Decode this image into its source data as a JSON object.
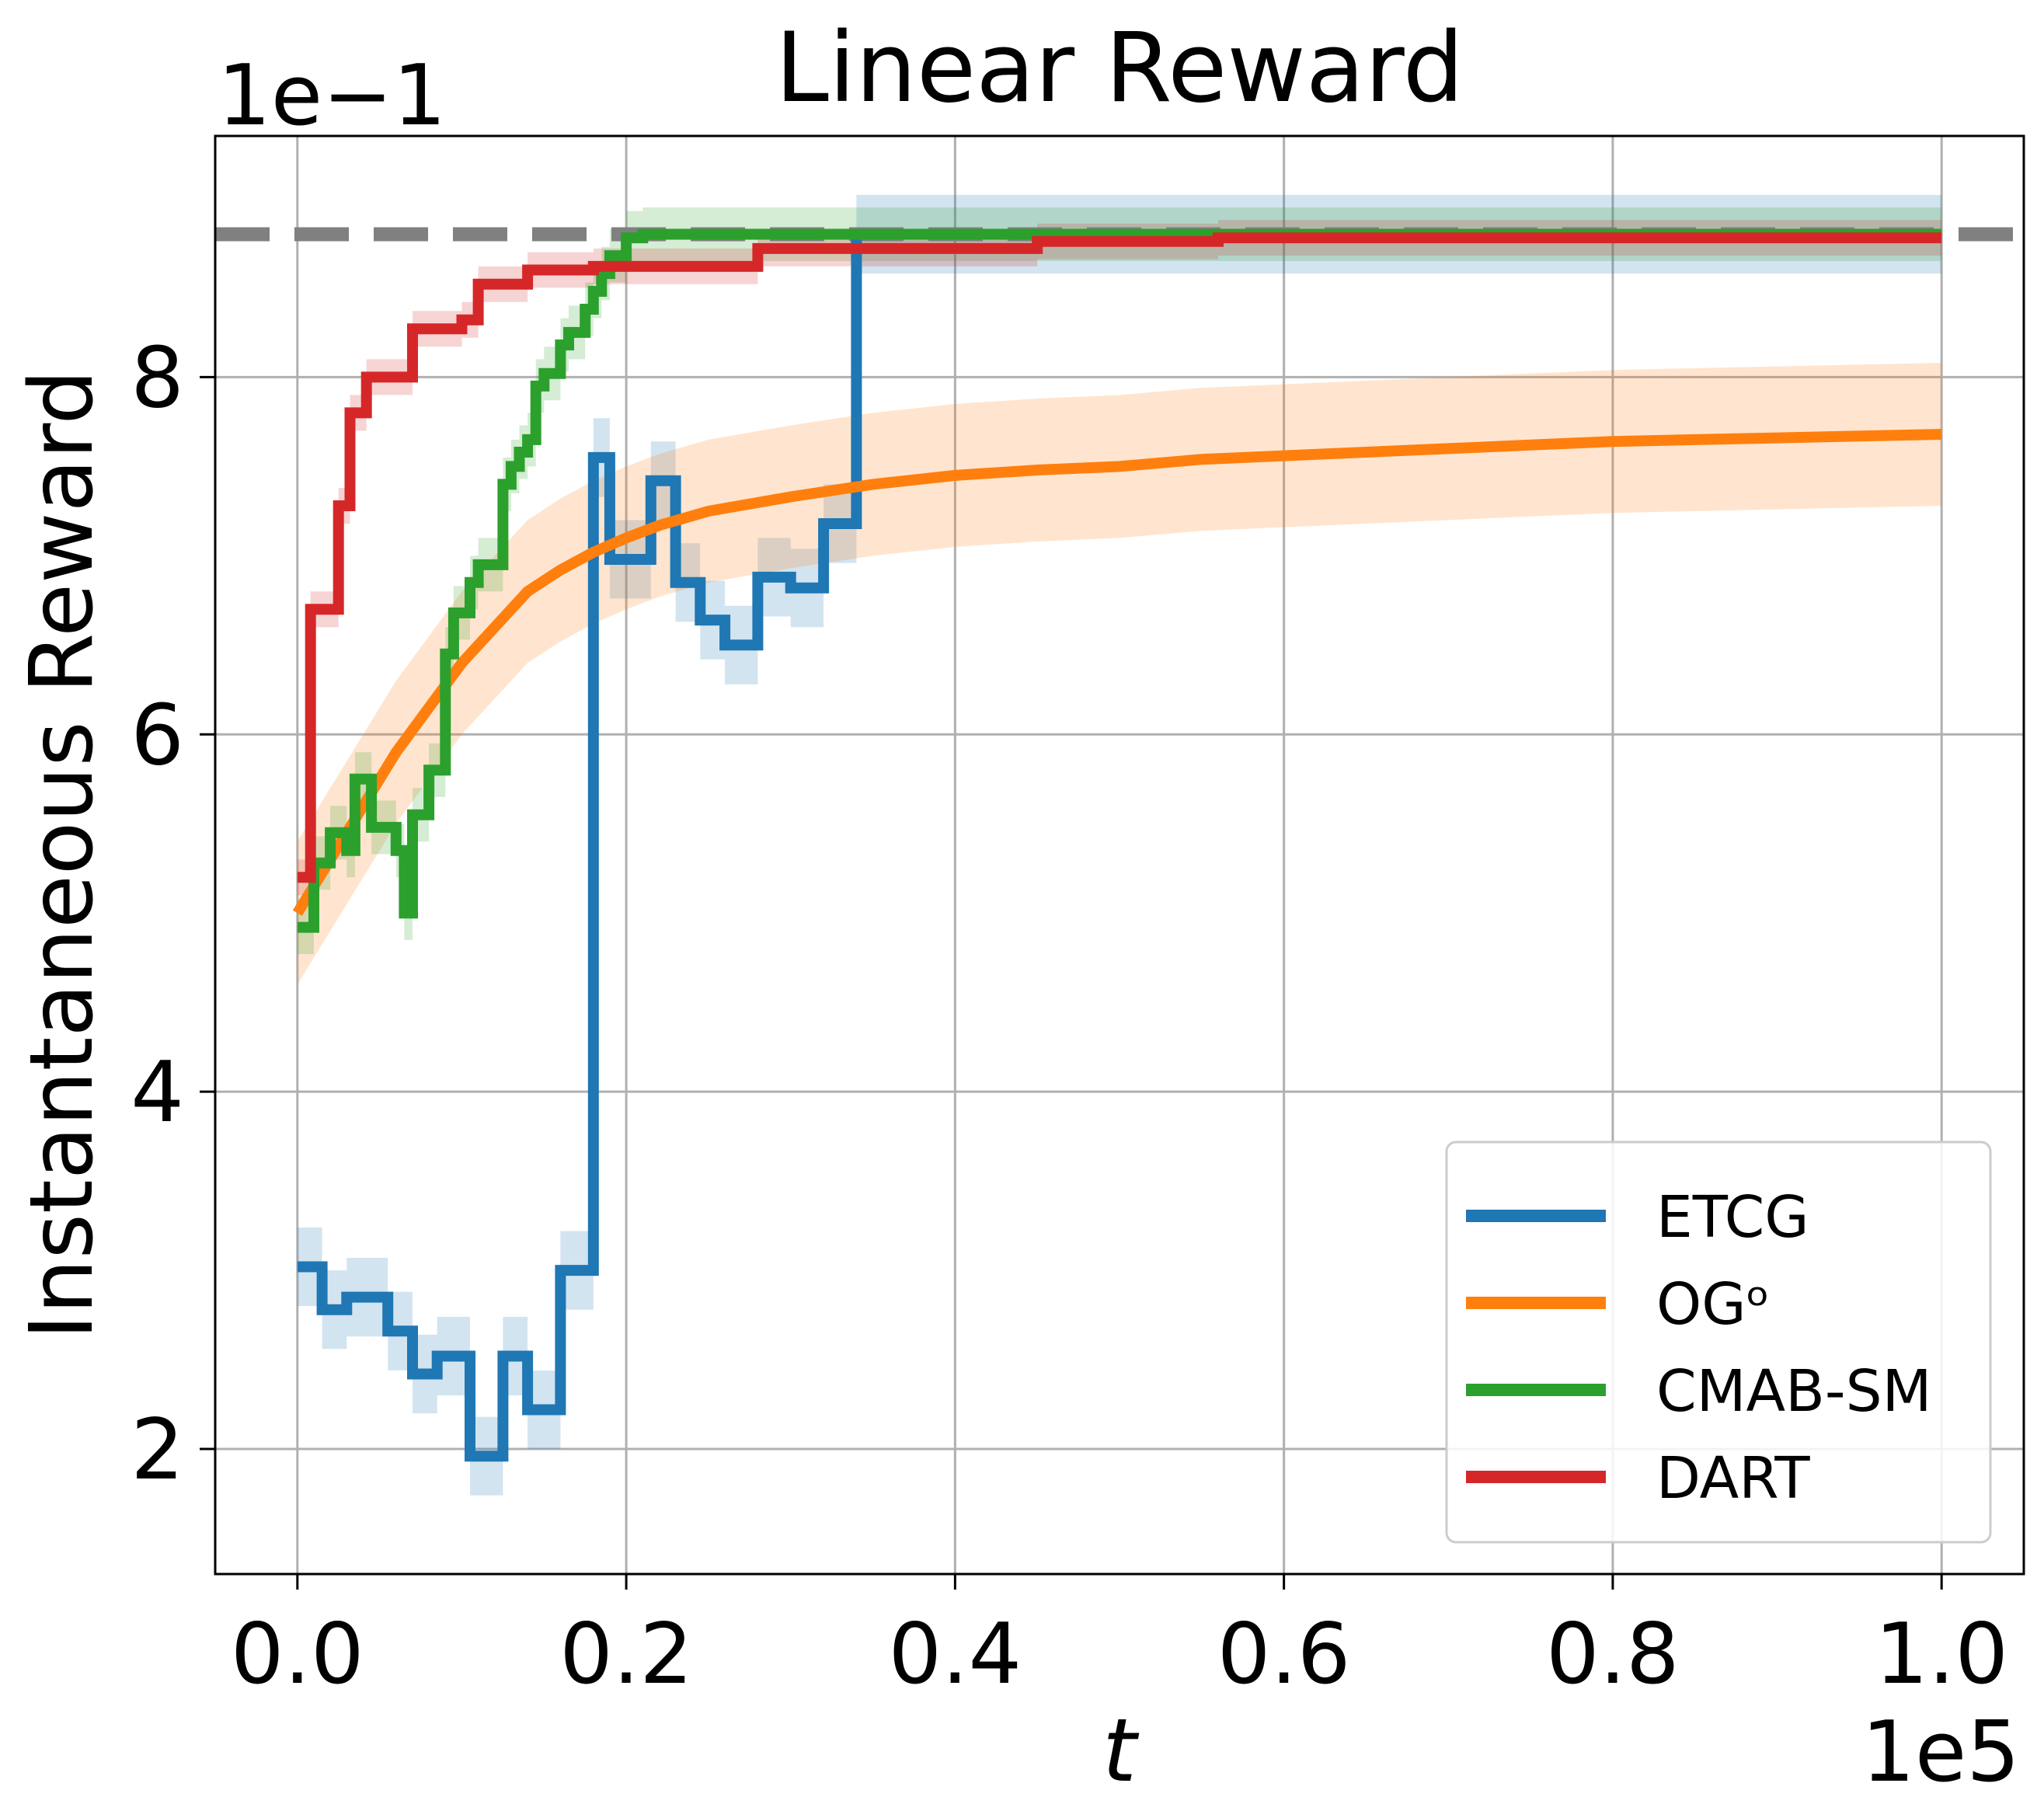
{
  "chart_data": {
    "type": "line",
    "title": "Linear Reward",
    "xlabel": "t",
    "ylabel": "Instantaneous Reward",
    "x_offset_text": "1e5",
    "y_offset_text": "1e−1",
    "xlim": [
      -0.05,
      1.05
    ],
    "ylim": [
      1.3,
      9.35
    ],
    "xticks": [
      0.0,
      0.2,
      0.4,
      0.6,
      0.8,
      1.0
    ],
    "xtick_labels": [
      "0.0",
      "0.2",
      "0.4",
      "0.6",
      "0.8",
      "1.0"
    ],
    "yticks": [
      2,
      4,
      6,
      8
    ],
    "ytick_labels": [
      "2",
      "4",
      "6",
      "8"
    ],
    "grid": true,
    "legend_position": "lower-right",
    "reference_line": {
      "y": 8.8,
      "style": "dashed",
      "color": "#808080"
    },
    "series": [
      {
        "name": "ETCG",
        "color": "#1f77b4",
        "band": 0.22,
        "points": [
          [
            0.0,
            3.02
          ],
          [
            0.015,
            3.02
          ],
          [
            0.015,
            2.78
          ],
          [
            0.03,
            2.78
          ],
          [
            0.03,
            2.85
          ],
          [
            0.055,
            2.85
          ],
          [
            0.055,
            2.66
          ],
          [
            0.07,
            2.66
          ],
          [
            0.07,
            2.42
          ],
          [
            0.085,
            2.42
          ],
          [
            0.085,
            2.52
          ],
          [
            0.105,
            2.52
          ],
          [
            0.105,
            1.96
          ],
          [
            0.125,
            1.96
          ],
          [
            0.125,
            2.52
          ],
          [
            0.14,
            2.52
          ],
          [
            0.14,
            2.22
          ],
          [
            0.16,
            2.22
          ],
          [
            0.16,
            3.0
          ],
          [
            0.18,
            3.0
          ],
          [
            0.18,
            7.55
          ],
          [
            0.19,
            7.55
          ],
          [
            0.19,
            6.98
          ],
          [
            0.215,
            6.98
          ],
          [
            0.215,
            7.42
          ],
          [
            0.23,
            7.42
          ],
          [
            0.23,
            6.85
          ],
          [
            0.245,
            6.85
          ],
          [
            0.245,
            6.64
          ],
          [
            0.26,
            6.64
          ],
          [
            0.26,
            6.5
          ],
          [
            0.28,
            6.5
          ],
          [
            0.28,
            6.88
          ],
          [
            0.3,
            6.88
          ],
          [
            0.3,
            6.82
          ],
          [
            0.32,
            6.82
          ],
          [
            0.32,
            7.18
          ],
          [
            0.34,
            7.18
          ],
          [
            0.34,
            8.8
          ],
          [
            1.0,
            8.8
          ]
        ]
      },
      {
        "name": "OGᵒ",
        "color": "#ff7f0e",
        "band": 0.4,
        "points": [
          [
            0.0,
            5.0
          ],
          [
            0.02,
            5.3
          ],
          [
            0.04,
            5.6
          ],
          [
            0.06,
            5.9
          ],
          [
            0.08,
            6.15
          ],
          [
            0.1,
            6.4
          ],
          [
            0.12,
            6.6
          ],
          [
            0.14,
            6.8
          ],
          [
            0.16,
            6.92
          ],
          [
            0.18,
            7.02
          ],
          [
            0.2,
            7.1
          ],
          [
            0.22,
            7.17
          ],
          [
            0.25,
            7.25
          ],
          [
            0.3,
            7.33
          ],
          [
            0.35,
            7.4
          ],
          [
            0.4,
            7.45
          ],
          [
            0.45,
            7.48
          ],
          [
            0.5,
            7.5
          ],
          [
            0.55,
            7.54
          ],
          [
            0.6,
            7.56
          ],
          [
            0.65,
            7.58
          ],
          [
            0.7,
            7.6
          ],
          [
            0.75,
            7.62
          ],
          [
            0.8,
            7.64
          ],
          [
            0.85,
            7.65
          ],
          [
            0.9,
            7.66
          ],
          [
            0.95,
            7.67
          ],
          [
            1.0,
            7.68
          ]
        ]
      },
      {
        "name": "CMAB-SM",
        "color": "#2ca02c",
        "band": 0.15,
        "points": [
          [
            0.0,
            4.92
          ],
          [
            0.01,
            4.92
          ],
          [
            0.01,
            5.28
          ],
          [
            0.02,
            5.28
          ],
          [
            0.02,
            5.45
          ],
          [
            0.03,
            5.45
          ],
          [
            0.03,
            5.35
          ],
          [
            0.035,
            5.35
          ],
          [
            0.035,
            5.75
          ],
          [
            0.045,
            5.75
          ],
          [
            0.045,
            5.48
          ],
          [
            0.06,
            5.48
          ],
          [
            0.06,
            5.35
          ],
          [
            0.065,
            5.35
          ],
          [
            0.065,
            5.0
          ],
          [
            0.07,
            5.0
          ],
          [
            0.07,
            5.55
          ],
          [
            0.08,
            5.55
          ],
          [
            0.08,
            5.8
          ],
          [
            0.09,
            5.8
          ],
          [
            0.09,
            6.45
          ],
          [
            0.095,
            6.45
          ],
          [
            0.095,
            6.68
          ],
          [
            0.105,
            6.68
          ],
          [
            0.105,
            6.85
          ],
          [
            0.11,
            6.85
          ],
          [
            0.11,
            6.95
          ],
          [
            0.125,
            6.95
          ],
          [
            0.125,
            7.4
          ],
          [
            0.13,
            7.4
          ],
          [
            0.13,
            7.5
          ],
          [
            0.135,
            7.5
          ],
          [
            0.135,
            7.58
          ],
          [
            0.14,
            7.58
          ],
          [
            0.14,
            7.65
          ],
          [
            0.145,
            7.65
          ],
          [
            0.145,
            7.95
          ],
          [
            0.15,
            7.95
          ],
          [
            0.15,
            8.02
          ],
          [
            0.16,
            8.02
          ],
          [
            0.16,
            8.18
          ],
          [
            0.165,
            8.18
          ],
          [
            0.165,
            8.25
          ],
          [
            0.175,
            8.25
          ],
          [
            0.175,
            8.38
          ],
          [
            0.18,
            8.38
          ],
          [
            0.18,
            8.48
          ],
          [
            0.185,
            8.48
          ],
          [
            0.185,
            8.58
          ],
          [
            0.19,
            8.58
          ],
          [
            0.19,
            8.68
          ],
          [
            0.2,
            8.68
          ],
          [
            0.2,
            8.78
          ],
          [
            0.21,
            8.78
          ],
          [
            0.21,
            8.8
          ],
          [
            1.0,
            8.8
          ]
        ]
      },
      {
        "name": "DART",
        "color": "#d62728",
        "band": 0.1,
        "points": [
          [
            0.0,
            5.2
          ],
          [
            0.008,
            5.2
          ],
          [
            0.008,
            6.7
          ],
          [
            0.025,
            6.7
          ],
          [
            0.025,
            7.28
          ],
          [
            0.032,
            7.28
          ],
          [
            0.032,
            7.8
          ],
          [
            0.042,
            7.8
          ],
          [
            0.042,
            8.0
          ],
          [
            0.07,
            8.0
          ],
          [
            0.07,
            8.27
          ],
          [
            0.1,
            8.27
          ],
          [
            0.1,
            8.32
          ],
          [
            0.11,
            8.32
          ],
          [
            0.11,
            8.52
          ],
          [
            0.14,
            8.52
          ],
          [
            0.14,
            8.6
          ],
          [
            0.18,
            8.6
          ],
          [
            0.18,
            8.62
          ],
          [
            0.28,
            8.62
          ],
          [
            0.28,
            8.72
          ],
          [
            0.45,
            8.72
          ],
          [
            0.45,
            8.76
          ],
          [
            0.56,
            8.76
          ],
          [
            0.56,
            8.78
          ],
          [
            1.0,
            8.78
          ]
        ]
      }
    ]
  }
}
